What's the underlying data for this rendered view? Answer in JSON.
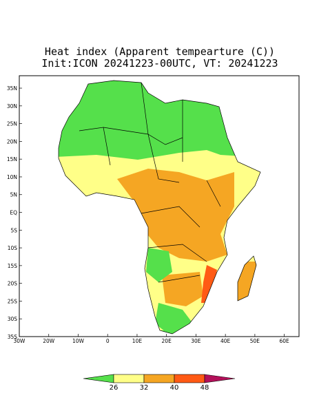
{
  "chart_data": {
    "type": "map",
    "title": "Heat index (Apparent tempearture (C))",
    "subtitle": "Init:ICON 20241223-00UTC, VT: 20241223",
    "xlim": [
      -30,
      65
    ],
    "ylim": [
      -35,
      38.5
    ],
    "xticks": [
      {
        "value": -30,
        "label": "30W"
      },
      {
        "value": -20,
        "label": "20W"
      },
      {
        "value": -10,
        "label": "10W"
      },
      0,
      {
        "value": 10,
        "label": "10E"
      },
      {
        "value": 20,
        "label": "20E"
      },
      {
        "value": 30,
        "label": "30E"
      },
      {
        "value": 40,
        "label": "40E"
      },
      {
        "value": 50,
        "label": "50E"
      },
      {
        "value": 60,
        "label": "60E"
      }
    ],
    "yticks": [
      {
        "value": 35,
        "label": "35N"
      },
      {
        "value": 30,
        "label": "30N"
      },
      {
        "value": 25,
        "label": "25N"
      },
      {
        "value": 20,
        "label": "20N"
      },
      {
        "value": 15,
        "label": "15N"
      },
      {
        "value": 10,
        "label": "10N"
      },
      {
        "value": 5,
        "label": "5N"
      },
      {
        "value": 0,
        "label": "EQ"
      },
      {
        "value": -5,
        "label": "5S"
      },
      {
        "value": -10,
        "label": "10S"
      },
      {
        "value": -15,
        "label": "15S"
      },
      {
        "value": -20,
        "label": "20S"
      },
      {
        "value": -25,
        "label": "25S"
      },
      {
        "value": -30,
        "label": "30S"
      },
      {
        "value": -35,
        "label": "35S"
      }
    ],
    "colorbar": {
      "levels": [
        26,
        32,
        40,
        48
      ],
      "colors": [
        "#55e04b",
        "#ffff88",
        "#f5a623",
        "#ff5a14",
        "#b3105a"
      ]
    }
  }
}
